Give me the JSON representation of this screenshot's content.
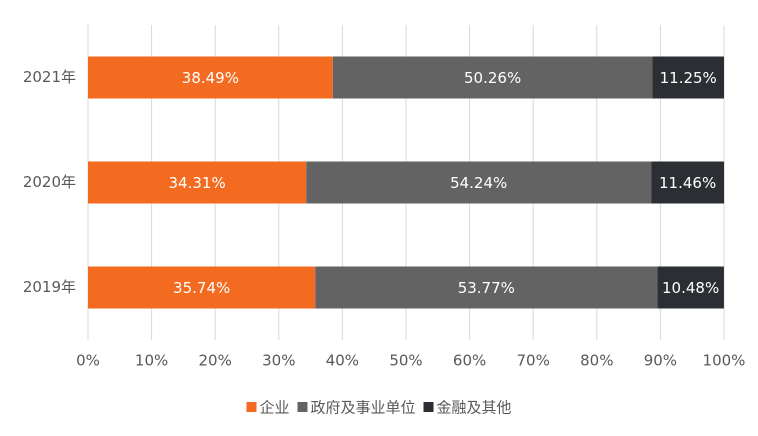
{
  "chart_data": {
    "type": "stacked_barh",
    "categories": [
      "2021年",
      "2020年",
      "2019年"
    ],
    "series": [
      {
        "name": "企业",
        "color": "#f26b21",
        "values": [
          38.49,
          34.31,
          35.74
        ],
        "value_labels": [
          "38.49%",
          "34.31%",
          "35.74%"
        ]
      },
      {
        "name": "政府及事业单位",
        "color": "#636363",
        "values": [
          50.26,
          54.24,
          53.77
        ],
        "value_labels": [
          "50.26%",
          "54.24%",
          "53.77%"
        ]
      },
      {
        "name": "金融及其他",
        "color": "#2b2f33",
        "values": [
          11.25,
          11.46,
          10.48
        ],
        "value_labels": [
          "11.25%",
          "11.46%",
          "10.48%"
        ]
      }
    ],
    "xlim": [
      0,
      100
    ],
    "xticks": [
      {
        "value": 0,
        "label": "0%"
      },
      {
        "value": 10,
        "label": "10%"
      },
      {
        "value": 20,
        "label": "20%"
      },
      {
        "value": 30,
        "label": "30%"
      },
      {
        "value": 40,
        "label": "40%"
      },
      {
        "value": 50,
        "label": "50%"
      },
      {
        "value": 60,
        "label": "60%"
      },
      {
        "value": 70,
        "label": "70%"
      },
      {
        "value": 80,
        "label": "80%"
      },
      {
        "value": 90,
        "label": "90%"
      },
      {
        "value": 100,
        "label": "100%"
      }
    ],
    "grid": true,
    "legend": "bottom"
  }
}
